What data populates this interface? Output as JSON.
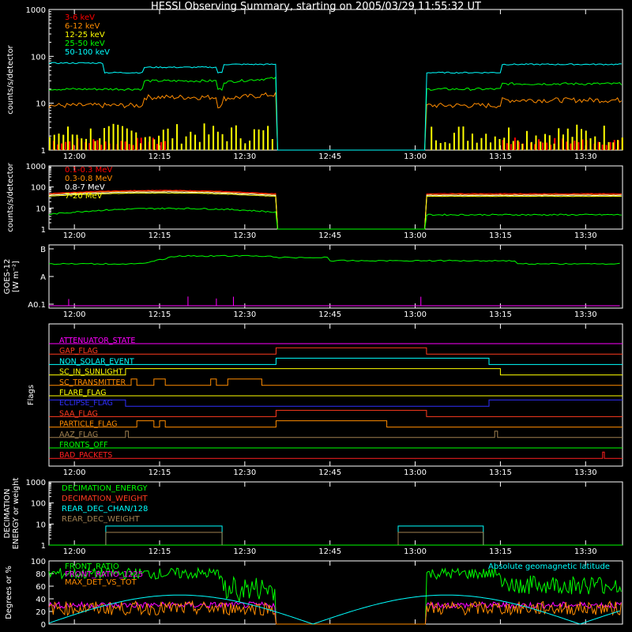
{
  "title": "HESSI Observing Summary, starting on 2005/03/29 11:55:32 UT",
  "time_ticks": [
    "12:00",
    "12:15",
    "12:30",
    "12:45",
    "13:00",
    "13:15",
    "13:30"
  ],
  "chart_data": [
    {
      "id": "lc_low",
      "type": "line",
      "ylabel": "counts/s/detector",
      "yscale": "log",
      "ylim": [
        1,
        1000
      ],
      "yticks": [
        "1",
        "10",
        "100",
        "1000"
      ],
      "series": [
        {
          "name": "3-6 keV",
          "color": "#ff0000",
          "level": 1.6
        },
        {
          "name": "6-12 keV",
          "color": "#ff8c00",
          "level": 9
        },
        {
          "name": "12-25 keV",
          "color": "#ffff00",
          "level": 2.5
        },
        {
          "name": "25-50 keV",
          "color": "#00ff00",
          "level": 20
        },
        {
          "name": "50-100 keV",
          "color": "#00ffff",
          "level": 45
        }
      ]
    },
    {
      "id": "lc_high",
      "type": "line",
      "ylabel": "counts/s/detector",
      "yscale": "log",
      "ylim": [
        1,
        1000
      ],
      "yticks": [
        "1",
        "10",
        "100",
        "1000"
      ],
      "series": [
        {
          "name": "0.1-0.3 MeV",
          "color": "#ff0000",
          "level": 60
        },
        {
          "name": "0.3-0.8 MeV",
          "color": "#ff8c00",
          "level": 55
        },
        {
          "name": "0.8-7 MeV",
          "color": "#ffffff",
          "level": 50
        },
        {
          "name": "7-20 MeV",
          "color": "#ffff00",
          "level": 45
        },
        {
          "name": "",
          "color": "#00ff00",
          "level": 8
        }
      ]
    },
    {
      "id": "goes",
      "type": "line",
      "ylabel": "GOES-12",
      "ylabel2": "[W m⁻²]",
      "ylevels": [
        "A0.1",
        "A",
        "B"
      ],
      "series": [
        {
          "name": "",
          "color": "#00ff00",
          "level": "A/B"
        },
        {
          "name": "",
          "color": "#ff00ff",
          "level": "A0.1"
        }
      ]
    },
    {
      "id": "flags",
      "type": "line",
      "ylabel": "Flags",
      "flags": [
        {
          "name": "ATTENUATOR_STATE",
          "color": "#ff00ff"
        },
        {
          "name": "GAP_FLAG",
          "color": "#ff3b1f"
        },
        {
          "name": "NON_SOLAR_EVENT",
          "color": "#00ffff"
        },
        {
          "name": "SC_IN_SUNLIGHT",
          "color": "#ffff00"
        },
        {
          "name": "SC_TRANSMITTER",
          "color": "#ff8c00"
        },
        {
          "name": "FLARE_FLAG",
          "color": "#ffff00"
        },
        {
          "name": "ECLIPSE_FLAG",
          "color": "#3030ff"
        },
        {
          "name": "SAA_FLAG",
          "color": "#ff3b1f"
        },
        {
          "name": "PARTICLE_FLAG",
          "color": "#ff8c00"
        },
        {
          "name": "AAZ_FLAG",
          "color": "#a08050"
        },
        {
          "name": "FRONTS_OFF",
          "color": "#00ff00"
        },
        {
          "name": "BAD_PACKETS",
          "color": "#ff2020"
        }
      ]
    },
    {
      "id": "decim",
      "type": "line",
      "ylabel": "DECIMATION",
      "ylabel2": "ENERGY or weight",
      "yscale": "log",
      "ylim": [
        1,
        1000
      ],
      "yticks": [
        "1",
        "10",
        "100",
        "1000"
      ],
      "series": [
        {
          "name": "DECIMATION_ENERGY",
          "color": "#00ff00"
        },
        {
          "name": "DECIMATION_WEIGHT",
          "color": "#ff3b1f"
        },
        {
          "name": "REAR_DEC_CHAN/128",
          "color": "#00ffff"
        },
        {
          "name": "REAR_DEC_WEIGHT",
          "color": "#a08050"
        }
      ]
    },
    {
      "id": "ratio",
      "type": "line",
      "ylabel": "Degrees or %",
      "ylim": [
        0,
        100
      ],
      "yticks": [
        "0",
        "20",
        "40",
        "60",
        "80",
        "100"
      ],
      "annotation": "Absolute geomagnetic latitude",
      "series": [
        {
          "name": "FRONT_RATIO",
          "color": "#00ff00",
          "level": 80
        },
        {
          "name": "FRONT_RATIO_1225",
          "color": "#ff00ff",
          "level": 30
        },
        {
          "name": "MAX_DET_VS_TOT",
          "color": "#ff8c00",
          "level": 25
        },
        {
          "name": "",
          "color": "#00ffff",
          "level": "sinusoid"
        }
      ]
    }
  ]
}
